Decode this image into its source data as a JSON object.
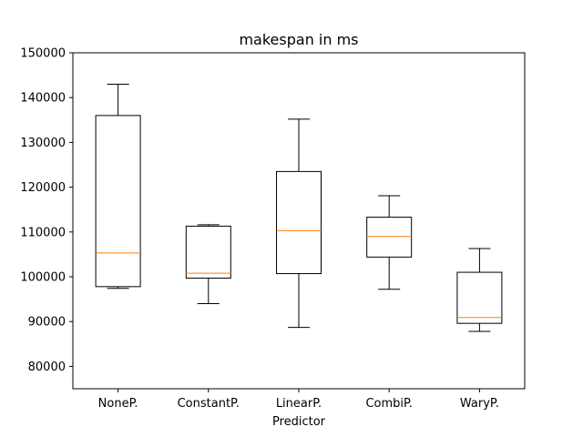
{
  "chart_data": {
    "type": "box",
    "title": "makespan in ms",
    "xlabel": "Predictor",
    "ylabel": "",
    "ylim": [
      75000,
      150000
    ],
    "yticks": [
      80000,
      90000,
      100000,
      110000,
      120000,
      130000,
      140000,
      150000
    ],
    "ytick_labels": [
      "80000",
      "90000",
      "100000",
      "110000",
      "120000",
      "130000",
      "140000",
      "150000"
    ],
    "categories": [
      "NoneP.",
      "ConstantP.",
      "LinearP.",
      "CombiP.",
      "WaryP."
    ],
    "boxes": [
      {
        "whisker_low": 97400,
        "q1": 97800,
        "median": 105300,
        "q3": 136000,
        "whisker_high": 143000
      },
      {
        "whisker_low": 94000,
        "q1": 99700,
        "median": 100800,
        "q3": 111300,
        "whisker_high": 111600
      },
      {
        "whisker_low": 88700,
        "q1": 100700,
        "median": 110300,
        "q3": 123500,
        "whisker_high": 135200
      },
      {
        "whisker_low": 97200,
        "q1": 104400,
        "median": 109000,
        "q3": 113300,
        "whisker_high": 118100
      },
      {
        "whisker_low": 87800,
        "q1": 89600,
        "median": 90900,
        "q3": 101000,
        "whisker_high": 106300
      }
    ],
    "grid": false,
    "colors": {
      "box": "#000000",
      "median": "#ff7f0e"
    }
  }
}
